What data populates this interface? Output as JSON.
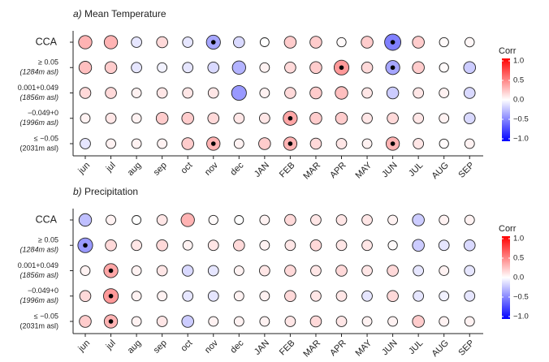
{
  "chart_data": [
    {
      "type": "bubble",
      "panel_label": "a)",
      "title": "Mean Temperature",
      "categories": [
        "jun",
        "jul",
        "aug",
        "sep",
        "oct",
        "nov",
        "dec",
        "JAN",
        "FEB",
        "MAR",
        "APR",
        "MAY",
        "JUN",
        "JUL",
        "AUG",
        "SEP"
      ],
      "rows": [
        {
          "label": "CCA"
        },
        {
          "label": "≥ 0.05",
          "sublabel": "(1284m asl)"
        },
        {
          "label": "0.001+0.049",
          "sublabel": "(1856m asl)"
        },
        {
          "label": "−0.049+0",
          "sublabel": "(1996m asl)"
        },
        {
          "label": "≤ −0.05",
          "sublabel": "(2031m asl)"
        }
      ],
      "values": [
        [
          0.3,
          0.3,
          -0.1,
          0.15,
          -0.1,
          -0.35,
          -0.15,
          0.0,
          0.2,
          0.2,
          0.02,
          0.2,
          -0.5,
          0.2,
          0.02,
          0.03
        ],
        [
          0.25,
          0.2,
          -0.1,
          -0.05,
          -0.1,
          -0.15,
          -0.3,
          0.05,
          0.15,
          0.2,
          0.4,
          0.15,
          -0.35,
          0.2,
          0.02,
          -0.2
        ],
        [
          0.15,
          0.15,
          0.05,
          0.1,
          0.1,
          0.1,
          -0.4,
          0.05,
          0.15,
          0.2,
          0.25,
          0.1,
          -0.2,
          0.1,
          0.05,
          -0.15
        ],
        [
          0.05,
          0.1,
          0.05,
          0.2,
          0.2,
          0.15,
          0.1,
          0.1,
          0.35,
          0.2,
          0.2,
          0.1,
          0.15,
          0.1,
          0.05,
          -0.15
        ],
        [
          -0.1,
          0.05,
          0.05,
          0.05,
          0.2,
          0.3,
          0.05,
          0.2,
          0.3,
          0.15,
          0.1,
          0.05,
          0.3,
          0.1,
          0.02,
          0.05
        ]
      ],
      "significant": [
        [
          false,
          false,
          false,
          false,
          false,
          true,
          false,
          false,
          false,
          false,
          false,
          false,
          true,
          false,
          false,
          false
        ],
        [
          false,
          false,
          false,
          false,
          false,
          false,
          false,
          false,
          false,
          false,
          true,
          false,
          true,
          false,
          false,
          false
        ],
        [
          false,
          false,
          false,
          false,
          false,
          false,
          false,
          false,
          false,
          false,
          false,
          false,
          false,
          false,
          false,
          false
        ],
        [
          false,
          false,
          false,
          false,
          false,
          false,
          false,
          false,
          true,
          false,
          false,
          false,
          false,
          false,
          false,
          false
        ],
        [
          false,
          false,
          false,
          false,
          false,
          true,
          false,
          false,
          true,
          false,
          false,
          false,
          true,
          false,
          false,
          false
        ]
      ],
      "legend_title": "Corr",
      "clim": [
        -1,
        1
      ],
      "cticks": [
        {
          "value": 1,
          "label": "1.0"
        },
        {
          "value": 0.5,
          "label": "0.5"
        },
        {
          "value": 0,
          "label": "0.0"
        },
        {
          "value": -0.5,
          "label": "−0.5"
        },
        {
          "value": -1,
          "label": "−1.0"
        }
      ]
    },
    {
      "type": "bubble",
      "panel_label": "b)",
      "title": "Precipitation",
      "categories": [
        "jun",
        "jul",
        "aug",
        "sep",
        "oct",
        "nov",
        "dec",
        "JAN",
        "FEB",
        "MAR",
        "APR",
        "MAY",
        "JUN",
        "JUL",
        "AUG",
        "SEP"
      ],
      "rows": [
        {
          "label": "CCA"
        },
        {
          "label": "≥ 0.05",
          "sublabel": "(1284m asl)"
        },
        {
          "label": "0.001+0.049",
          "sublabel": "(1856m asl)"
        },
        {
          "label": "−0.049+0",
          "sublabel": "(1996m asl)"
        },
        {
          "label": "≤ −0.05",
          "sublabel": "(2031m asl)"
        }
      ],
      "values": [
        [
          -0.25,
          0.05,
          0.0,
          0.1,
          0.3,
          0.02,
          0.0,
          0.05,
          0.15,
          0.1,
          0.1,
          0.1,
          0.05,
          -0.2,
          0.05,
          0.05
        ],
        [
          -0.4,
          0.15,
          0.1,
          0.15,
          0.05,
          0.1,
          0.15,
          0.05,
          0.1,
          0.15,
          0.1,
          0.1,
          0.02,
          -0.2,
          -0.1,
          -0.15
        ],
        [
          0.05,
          0.35,
          0.05,
          0.1,
          -0.15,
          -0.1,
          0.05,
          0.1,
          0.15,
          0.1,
          0.15,
          0.1,
          0.15,
          -0.1,
          0.05,
          -0.1
        ],
        [
          0.15,
          0.4,
          0.05,
          0.05,
          -0.1,
          -0.1,
          0.05,
          0.05,
          0.15,
          0.1,
          0.1,
          -0.1,
          0.15,
          -0.1,
          -0.05,
          -0.1
        ],
        [
          0.2,
          0.3,
          0.05,
          0.1,
          -0.2,
          0.05,
          0.05,
          0.05,
          0.1,
          0.15,
          0.1,
          0.05,
          0.05,
          0.2,
          0.05,
          0.05
        ]
      ],
      "significant": [
        [
          false,
          false,
          false,
          false,
          false,
          false,
          false,
          false,
          false,
          false,
          false,
          false,
          false,
          false,
          false,
          false
        ],
        [
          true,
          false,
          false,
          false,
          false,
          false,
          false,
          false,
          false,
          false,
          false,
          false,
          false,
          false,
          false,
          false
        ],
        [
          false,
          true,
          false,
          false,
          false,
          false,
          false,
          false,
          false,
          false,
          false,
          false,
          false,
          false,
          false,
          false
        ],
        [
          false,
          true,
          false,
          false,
          false,
          false,
          false,
          false,
          false,
          false,
          false,
          false,
          false,
          false,
          false,
          false
        ],
        [
          false,
          true,
          false,
          false,
          false,
          false,
          false,
          false,
          false,
          false,
          false,
          false,
          false,
          false,
          false,
          false
        ]
      ],
      "legend_title": "Corr",
      "clim": [
        -1,
        1
      ],
      "cticks": [
        {
          "value": 1,
          "label": "1.0"
        },
        {
          "value": 0.5,
          "label": "0.5"
        },
        {
          "value": 0,
          "label": "0.0"
        },
        {
          "value": -0.5,
          "label": "−0.5"
        },
        {
          "value": -1,
          "label": "−1.0"
        }
      ]
    }
  ]
}
